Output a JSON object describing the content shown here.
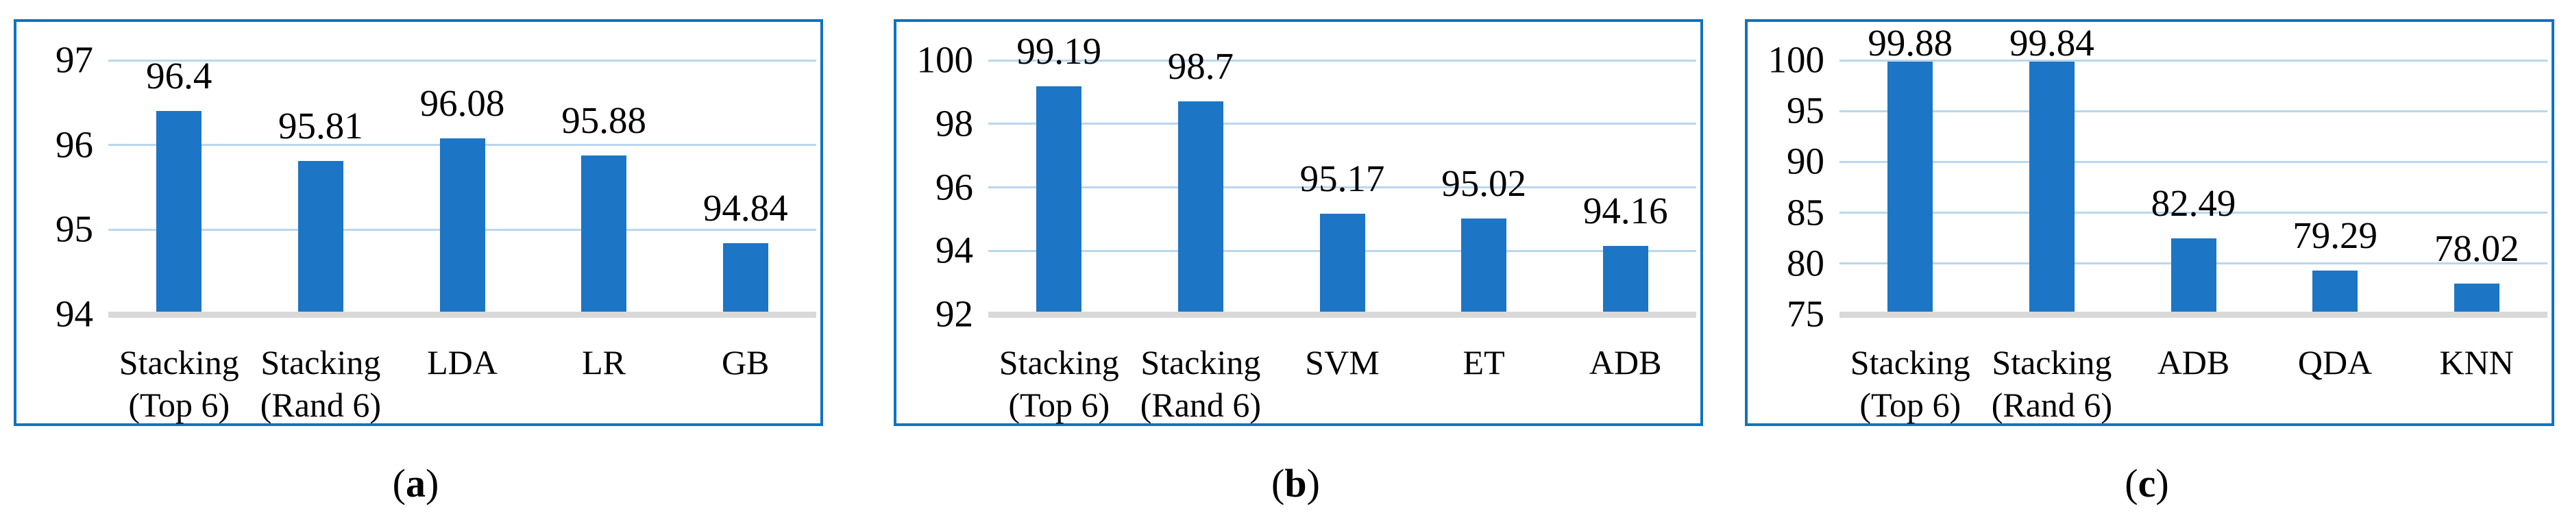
{
  "figure": {
    "description": "Three bar charts comparing classifier accuracies",
    "colors": {
      "bar": "#1C75C5",
      "box_border": "#1173BE",
      "gridline": "#B9D7EE",
      "axis_baseline": "#D9D9D9",
      "text": "#000000",
      "background": "#FFFFFF"
    }
  },
  "chart_data": [
    {
      "type": "bar",
      "caption": "(a)",
      "categories": [
        "Stacking (Top 6)",
        "Stacking (Rand 6)",
        "LDA",
        "LR",
        "GB"
      ],
      "category_lines": [
        [
          "Stacking",
          "(Top 6)"
        ],
        [
          "Stacking",
          "(Rand 6)"
        ],
        [
          "LDA"
        ],
        [
          "LR"
        ],
        [
          "GB"
        ]
      ],
      "values": [
        96.4,
        95.81,
        96.08,
        95.88,
        94.84
      ],
      "data_labels": [
        "96.4",
        "95.81",
        "96.08",
        "95.88",
        "94.84"
      ],
      "ylim": [
        94,
        97
      ],
      "yticks": [
        94,
        95,
        96,
        97
      ],
      "grid": true,
      "legend_position": "none"
    },
    {
      "type": "bar",
      "caption": "(b)",
      "categories": [
        "Stacking (Top 6)",
        "Stacking (Rand 6)",
        "SVM",
        "ET",
        "ADB"
      ],
      "category_lines": [
        [
          "Stacking",
          "(Top 6)"
        ],
        [
          "Stacking",
          "(Rand 6)"
        ],
        [
          "SVM"
        ],
        [
          "ET"
        ],
        [
          "ADB"
        ]
      ],
      "values": [
        99.19,
        98.7,
        95.17,
        95.02,
        94.16
      ],
      "data_labels": [
        "99.19",
        "98.7",
        "95.17",
        "95.02",
        "94.16"
      ],
      "ylim": [
        92,
        100
      ],
      "yticks": [
        92,
        94,
        96,
        98,
        100
      ],
      "grid": true,
      "legend_position": "none"
    },
    {
      "type": "bar",
      "caption": "(c)",
      "categories": [
        "Stacking (Top 6)",
        "Stacking (Rand 6)",
        "ADB",
        "QDA",
        "KNN"
      ],
      "category_lines": [
        [
          "Stacking",
          "(Top 6)"
        ],
        [
          "Stacking",
          "(Rand 6)"
        ],
        [
          "ADB"
        ],
        [
          "QDA"
        ],
        [
          "KNN"
        ]
      ],
      "values": [
        99.88,
        99.84,
        82.49,
        79.29,
        78.02
      ],
      "data_labels": [
        "99.88",
        "99.84",
        "82.49",
        "79.29",
        "78.02"
      ],
      "ylim": [
        75,
        100
      ],
      "yticks": [
        75,
        80,
        85,
        90,
        95,
        100
      ],
      "grid": true,
      "legend_position": "none"
    }
  ]
}
